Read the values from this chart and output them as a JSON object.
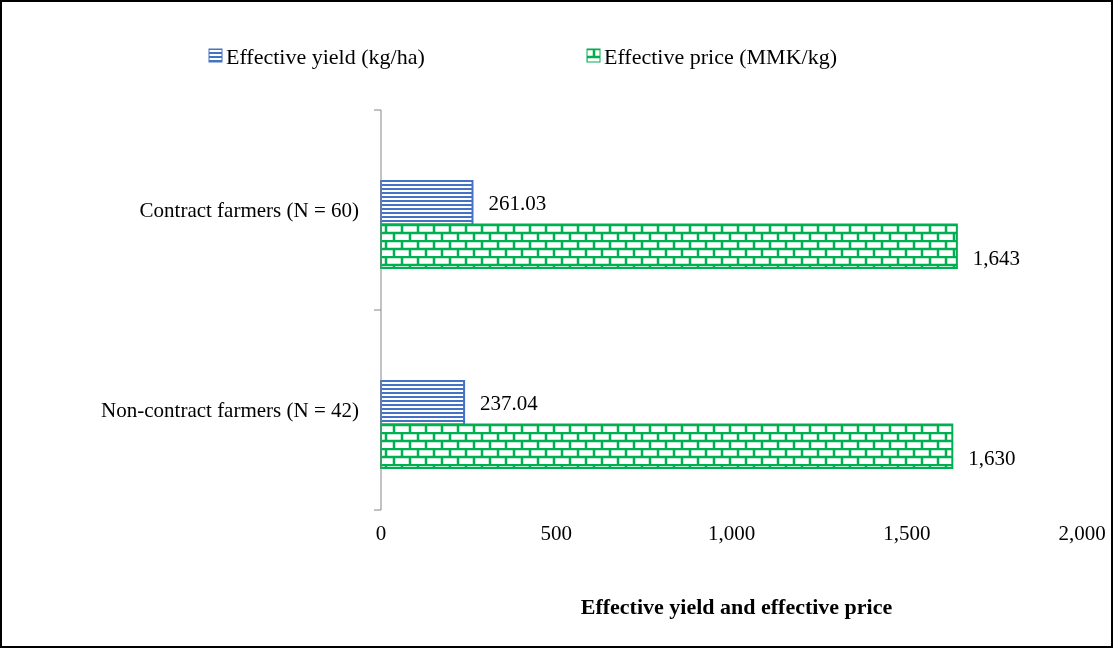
{
  "chart_data": {
    "type": "bar",
    "orientation": "horizontal",
    "xlabel": "Effective yield and effective price",
    "categories": [
      "Contract farmers (N = 60)",
      "Non-contract farmers (N = 42)"
    ],
    "series": [
      {
        "name": "Effective yield (kg/ha)",
        "color": "#4472c4",
        "values": [
          261.03,
          237.04
        ],
        "value_labels": [
          "261.03",
          "237.04"
        ]
      },
      {
        "name": "Effective price (MMK/kg)",
        "color": "#00b050",
        "values": [
          1643,
          1630
        ],
        "value_labels": [
          "1,643",
          "1,630"
        ]
      }
    ],
    "xlim": [
      0,
      2000
    ],
    "xticks": [
      {
        "value": 0,
        "label": "0"
      },
      {
        "value": 500,
        "label": "500"
      },
      {
        "value": 1000,
        "label": "1,000"
      },
      {
        "value": 1500,
        "label": "1,500"
      },
      {
        "value": 2000,
        "label": "2,000"
      }
    ],
    "grid": false,
    "legend": "top"
  }
}
